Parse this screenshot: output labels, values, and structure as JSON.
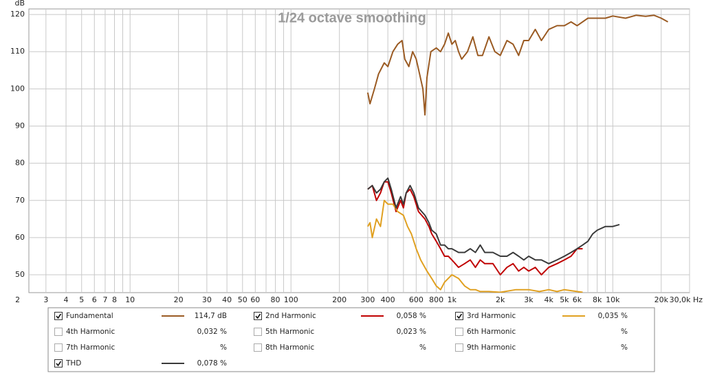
{
  "chart_data": {
    "type": "line",
    "title": "1/24 octave smoothing",
    "y_label": "dB",
    "xscale": "log",
    "grid": true,
    "xlim": [
      2.35,
      30000
    ],
    "ylim": [
      45.2,
      121.5
    ],
    "yticks": [
      50,
      60,
      70,
      80,
      90,
      100,
      110,
      120
    ],
    "xticks": [
      2,
      3,
      4,
      5,
      6,
      7,
      8,
      10,
      20,
      30,
      40,
      50,
      60,
      80,
      100,
      200,
      300,
      400,
      600,
      800,
      {
        "value": 1000,
        "label": "1k"
      },
      {
        "value": 2000,
        "label": "2k"
      },
      {
        "value": 3000,
        "label": "3k"
      },
      {
        "value": 4000,
        "label": "4k"
      },
      {
        "value": 5000,
        "label": "5k"
      },
      {
        "value": 6000,
        "label": "6k"
      },
      {
        "value": 8000,
        "label": "8k"
      },
      {
        "value": 10000,
        "label": "10k"
      },
      {
        "value": 20000,
        "label": "20k"
      },
      {
        "value": 30000,
        "label": "30,0k Hz"
      }
    ],
    "xgrid": [
      9,
      70,
      90,
      500,
      700,
      900,
      7000,
      9000
    ],
    "series": [
      {
        "name": "Fundamental",
        "color": "#9a5a22",
        "checked": true,
        "reading": "114,7 dB",
        "x": [
          300,
          310,
          330,
          350,
          380,
          400,
          430,
          460,
          490,
          510,
          540,
          570,
          600,
          630,
          660,
          680,
          700,
          740,
          800,
          850,
          900,
          950,
          1000,
          1050,
          1100,
          1150,
          1250,
          1350,
          1450,
          1550,
          1700,
          1850,
          2000,
          2200,
          2400,
          2600,
          2800,
          3000,
          3300,
          3600,
          4000,
          4500,
          5000,
          5500,
          6000,
          7000,
          8000,
          9000,
          10000,
          12000,
          14000,
          16000,
          18000,
          20000,
          22000
        ],
        "values": [
          99,
          96,
          100,
          104,
          107,
          106,
          110,
          112,
          113,
          108,
          106,
          110,
          108,
          104,
          100,
          93,
          103,
          110,
          111,
          110,
          112,
          115,
          112,
          113,
          110,
          108,
          110,
          114,
          109,
          109,
          114,
          110,
          109,
          113,
          112,
          109,
          113,
          113,
          116,
          113,
          116,
          117,
          117,
          118,
          117,
          119,
          119,
          119,
          119.6,
          119,
          119.8,
          119.5,
          119.8,
          119,
          118
        ]
      },
      {
        "name": "2nd Harmonic",
        "color": "#c00000",
        "checked": true,
        "reading": "0,058 %",
        "x": [
          300,
          320,
          340,
          360,
          380,
          400,
          420,
          450,
          480,
          500,
          520,
          550,
          580,
          620,
          680,
          720,
          750,
          800,
          850,
          900,
          950,
          1000,
          1100,
          1200,
          1300,
          1400,
          1500,
          1600,
          1800,
          2000,
          2200,
          2400,
          2600,
          2800,
          3000,
          3300,
          3600,
          4000,
          4500,
          5000,
          5500,
          6000,
          6500
        ],
        "values": [
          73,
          74,
          70,
          72,
          75,
          75,
          72,
          67,
          70,
          68,
          72,
          73,
          71,
          67,
          65,
          63,
          61,
          59,
          57,
          55,
          55,
          54,
          52,
          53,
          54,
          52,
          54,
          53,
          53,
          50,
          52,
          53,
          51,
          52,
          51,
          52,
          50,
          52,
          53,
          54,
          55,
          57,
          57
        ]
      },
      {
        "name": "3rd Harmonic",
        "color": "#e0a020",
        "checked": true,
        "reading": "0,035 %",
        "x": [
          300,
          310,
          320,
          340,
          360,
          380,
          400,
          430,
          460,
          500,
          530,
          560,
          600,
          640,
          700,
          750,
          800,
          850,
          900,
          1000,
          1100,
          1200,
          1300,
          1400,
          1500,
          1700,
          2000,
          2500,
          3000,
          3500,
          4000,
          4500,
          5000,
          6000,
          6500
        ],
        "values": [
          63,
          64,
          60,
          65,
          63,
          70,
          69,
          69,
          67,
          66,
          63,
          61,
          57,
          54,
          51,
          49,
          47,
          46,
          48,
          50,
          49,
          47,
          46,
          46,
          45.5,
          45.5,
          45.3,
          46,
          46,
          45.5,
          46,
          45.5,
          46,
          45.5,
          45.3
        ]
      },
      {
        "name": "4th Harmonic",
        "color": "#b4b400",
        "checked": false,
        "reading": "0,032 %",
        "x": [],
        "values": []
      },
      {
        "name": "5th Harmonic",
        "color": "#8cc040",
        "checked": false,
        "reading": "0,023 %",
        "x": [],
        "values": []
      },
      {
        "name": "6th Harmonic",
        "color": "#4a7fc0",
        "checked": false,
        "reading": "%",
        "x": [],
        "values": []
      },
      {
        "name": "7th Harmonic",
        "color": "#e070e0",
        "checked": false,
        "reading": "%",
        "x": [],
        "values": []
      },
      {
        "name": "8th Harmonic",
        "color": "#909090",
        "checked": false,
        "reading": "%",
        "x": [],
        "values": []
      },
      {
        "name": "9th Harmonic",
        "color": "#20a0a0",
        "checked": false,
        "reading": "%",
        "x": [],
        "values": []
      },
      {
        "name": "THD",
        "color": "#3a3a3a",
        "checked": true,
        "reading": "0,078 %",
        "x": [
          300,
          320,
          340,
          360,
          380,
          400,
          420,
          450,
          480,
          500,
          520,
          550,
          580,
          620,
          680,
          720,
          750,
          800,
          850,
          900,
          950,
          1000,
          1100,
          1200,
          1300,
          1400,
          1500,
          1600,
          1800,
          2000,
          2200,
          2400,
          2600,
          2800,
          3000,
          3300,
          3600,
          4000,
          4500,
          5000,
          5500,
          6000,
          6500,
          7000,
          7500,
          8000,
          9000,
          10000,
          11000
        ],
        "values": [
          73,
          74,
          72,
          73,
          75,
          76,
          73,
          68,
          71,
          69,
          72,
          74,
          72,
          68,
          66,
          64,
          62,
          61,
          58,
          58,
          57,
          57,
          56,
          56,
          57,
          56,
          58,
          56,
          56,
          55,
          55,
          56,
          55,
          54,
          55,
          54,
          54,
          53,
          54,
          55,
          56,
          57,
          58,
          59,
          61,
          62,
          63,
          63,
          63.5
        ]
      }
    ]
  }
}
